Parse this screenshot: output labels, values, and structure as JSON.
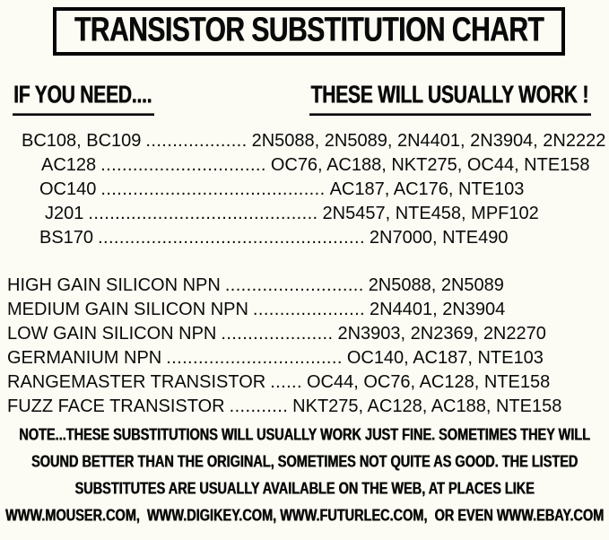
{
  "page": {
    "background_color": "#fcfcf4",
    "ink_color": "#0a0a0a"
  },
  "title": "TRANSISTOR SUBSTITUTION CHART",
  "column_headers": {
    "need": "IF YOU NEED....",
    "work": "THESE WILL USUALLY WORK !"
  },
  "part_substitutions": [
    {
      "need": "BC108, BC109",
      "dots": "...................",
      "subs": "2N5088, 2N5089, 2N4401, 2N3904, 2N2222"
    },
    {
      "need": "AC128",
      "dots": "...............................",
      "subs": "OC76, AC188, NKT275, OC44, NTE158"
    },
    {
      "need": "OC140",
      "dots": "..........................................",
      "subs": "AC187, AC176, NTE103"
    },
    {
      "need": "J201",
      "dots": "...........................................",
      "subs": "2N5457, NTE458, MPF102"
    },
    {
      "need": "BS170",
      "dots": "..................................................",
      "subs": "2N7000, NTE490"
    }
  ],
  "type_substitutions": [
    {
      "need": "HIGH GAIN SILICON NPN",
      "dots": "..........................",
      "subs": "2N5088, 2N5089"
    },
    {
      "need": "MEDIUM GAIN SILICON NPN",
      "dots": ".....................",
      "subs": "2N4401, 2N3904"
    },
    {
      "need": "LOW GAIN SILICON NPN",
      "dots": ".....................",
      "subs": "2N3903, 2N2369, 2N2270"
    },
    {
      "need": "GERMANIUM NPN",
      "dots": ".................................",
      "subs": "OC140, AC187, NTE103"
    },
    {
      "need": "RANGEMASTER TRANSISTOR",
      "dots": "......",
      "subs": "OC44, OC76, AC128, NTE158"
    },
    {
      "need": "FUZZ FACE TRANSISTOR",
      "dots": "...........",
      "subs": "NKT275, AC128, AC188, NTE158"
    }
  ],
  "note_lines": [
    "NOTE...THESE SUBSTITUTIONS WILL USUALLY WORK JUST FINE. SOMETIMES THEY WILL",
    "SOUND BETTER THAN THE ORIGINAL, SOMETIMES NOT QUITE AS GOOD. THE LISTED",
    "SUBSTITUTES ARE USUALLY AVAILABLE ON THE WEB, AT PLACES LIKE",
    "WWW.MOUSER.COM,  WWW.DIGIKEY.COM, WWW.FUTURLEC.COM,  OR EVEN WWW.EBAY.COM"
  ]
}
